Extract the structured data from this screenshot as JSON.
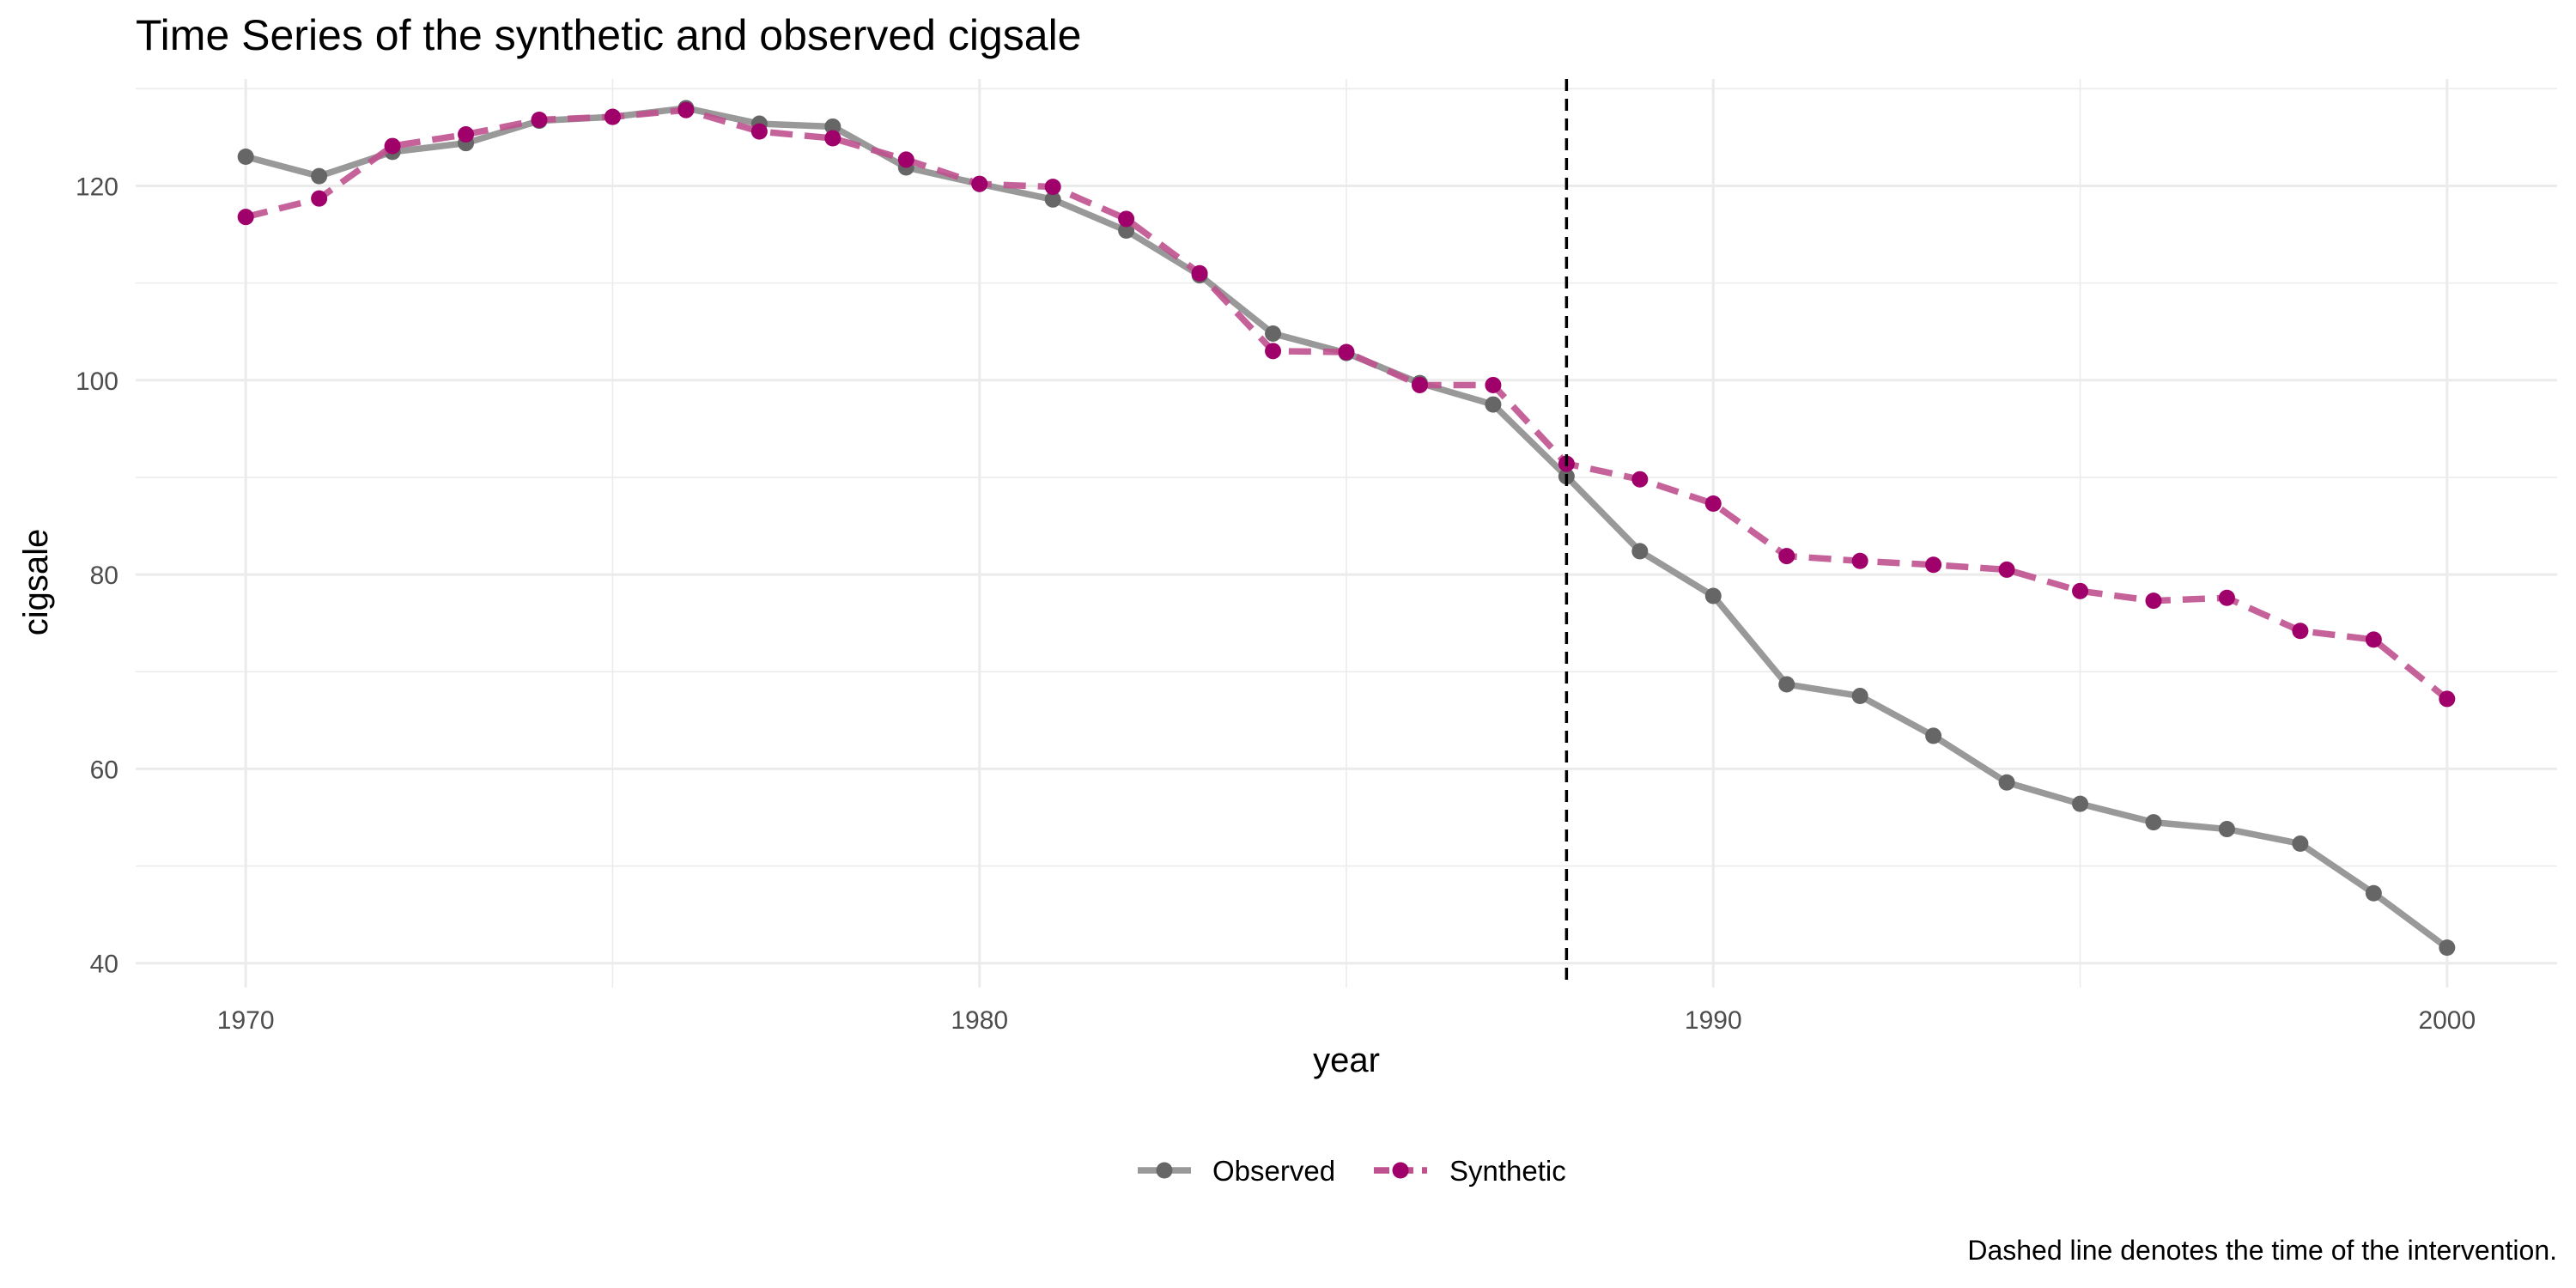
{
  "chart_data": {
    "type": "line",
    "title": "Time Series of the synthetic and observed cigsale",
    "xlabel": "year",
    "ylabel": "cigsale",
    "xlim": [
      1968.5,
      2001.5
    ],
    "ylim": [
      37.5,
      131
    ],
    "x_ticks": [
      1970,
      1980,
      1990,
      2000
    ],
    "x_minor_ticks": [
      1975,
      1985,
      1995
    ],
    "y_ticks": [
      40,
      60,
      80,
      100,
      120
    ],
    "y_minor_ticks": [
      50,
      70,
      90,
      110,
      130
    ],
    "intervention_year": 1988,
    "legend_position": "bottom",
    "caption": "Dashed line denotes the time of the intervention.",
    "x": [
      1970,
      1971,
      1972,
      1973,
      1974,
      1975,
      1976,
      1977,
      1978,
      1979,
      1980,
      1981,
      1982,
      1983,
      1984,
      1985,
      1986,
      1987,
      1988,
      1989,
      1990,
      1991,
      1992,
      1993,
      1994,
      1995,
      1996,
      1997,
      1998,
      1999,
      2000
    ],
    "series": [
      {
        "name": "Observed",
        "line_color": "#999999",
        "point_color": "#666666",
        "dash": "solid",
        "values": [
          123.0,
          121.0,
          123.5,
          124.4,
          126.7,
          127.1,
          128.0,
          126.4,
          126.1,
          121.9,
          120.2,
          118.6,
          115.4,
          110.8,
          104.8,
          102.8,
          99.7,
          97.5,
          90.1,
          82.4,
          77.8,
          68.7,
          67.5,
          63.4,
          58.6,
          56.4,
          54.5,
          53.8,
          52.3,
          47.2,
          41.6
        ]
      },
      {
        "name": "Synthetic",
        "line_color": "#c0518f",
        "point_color": "#a0006a",
        "dash": "dashed",
        "values": [
          116.8,
          118.7,
          124.1,
          125.3,
          126.8,
          127.1,
          127.8,
          125.6,
          124.9,
          122.7,
          120.2,
          119.9,
          116.6,
          111.0,
          103.0,
          102.9,
          99.5,
          99.5,
          91.4,
          89.8,
          87.3,
          81.9,
          81.4,
          81.0,
          80.5,
          78.3,
          77.3,
          77.6,
          74.2,
          73.3,
          67.2
        ]
      }
    ]
  }
}
